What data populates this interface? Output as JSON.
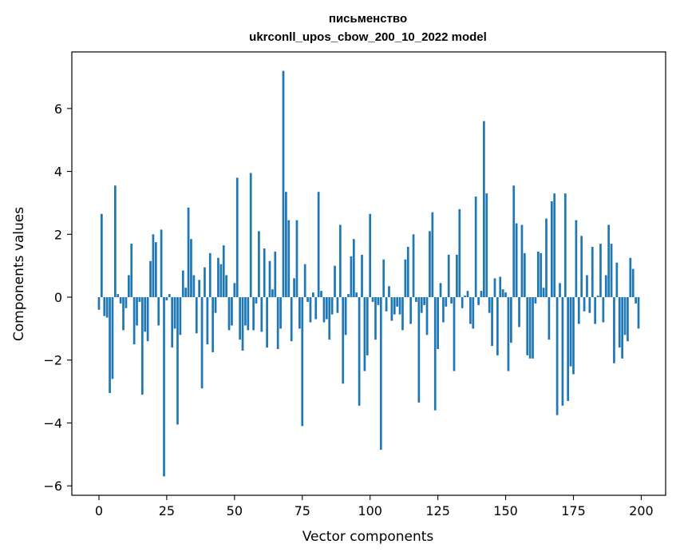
{
  "chart_data": {
    "type": "bar",
    "title": "письменство",
    "subtitle": "ukrconll_upos_cbow_200_10_2022 model",
    "xlabel": "Vector components",
    "ylabel": "Components values",
    "xlim": [
      -10,
      209
    ],
    "ylim": [
      -6.3,
      7.8
    ],
    "xticks": [
      0,
      25,
      50,
      75,
      100,
      125,
      150,
      175,
      200
    ],
    "yticks": [
      -6,
      -4,
      -2,
      0,
      2,
      4,
      6
    ],
    "ytick_labels": [
      "−6",
      "−4",
      "−2",
      "0",
      "2",
      "4",
      "6"
    ],
    "grid": false,
    "bar_color": "#1f77b4",
    "categories": [
      0,
      1,
      2,
      3,
      4,
      5,
      6,
      7,
      8,
      9,
      10,
      11,
      12,
      13,
      14,
      15,
      16,
      17,
      18,
      19,
      20,
      21,
      22,
      23,
      24,
      25,
      26,
      27,
      28,
      29,
      30,
      31,
      32,
      33,
      34,
      35,
      36,
      37,
      38,
      39,
      40,
      41,
      42,
      43,
      44,
      45,
      46,
      47,
      48,
      49,
      50,
      51,
      52,
      53,
      54,
      55,
      56,
      57,
      58,
      59,
      60,
      61,
      62,
      63,
      64,
      65,
      66,
      67,
      68,
      69,
      70,
      71,
      72,
      73,
      74,
      75,
      76,
      77,
      78,
      79,
      80,
      81,
      82,
      83,
      84,
      85,
      86,
      87,
      88,
      89,
      90,
      91,
      92,
      93,
      94,
      95,
      96,
      97,
      98,
      99,
      100,
      101,
      102,
      103,
      104,
      105,
      106,
      107,
      108,
      109,
      110,
      111,
      112,
      113,
      114,
      115,
      116,
      117,
      118,
      119,
      120,
      121,
      122,
      123,
      124,
      125,
      126,
      127,
      128,
      129,
      130,
      131,
      132,
      133,
      134,
      135,
      136,
      137,
      138,
      139,
      140,
      141,
      142,
      143,
      144,
      145,
      146,
      147,
      148,
      149,
      150,
      151,
      152,
      153,
      154,
      155,
      156,
      157,
      158,
      159,
      160,
      161,
      162,
      163,
      164,
      165,
      166,
      167,
      168,
      169,
      170,
      171,
      172,
      173,
      174,
      175,
      176,
      177,
      178,
      179,
      180,
      181,
      182,
      183,
      184,
      185,
      186,
      187,
      188,
      189,
      190,
      191,
      192,
      193,
      194,
      195,
      196,
      197,
      198,
      199
    ],
    "values": [
      -0.4,
      2.65,
      -0.6,
      -0.65,
      -3.05,
      -2.6,
      3.55,
      0.1,
      -0.2,
      -1.05,
      -0.35,
      0.7,
      1.7,
      -1.5,
      -0.9,
      -0.15,
      -3.1,
      -1.1,
      -1.4,
      1.15,
      2.0,
      1.75,
      -0.9,
      2.15,
      -5.7,
      -0.1,
      0.1,
      -1.6,
      -1.0,
      -4.05,
      -1.2,
      0.85,
      0.3,
      2.85,
      1.85,
      0.7,
      -1.15,
      0.55,
      -2.9,
      0.95,
      -1.5,
      1.4,
      -1.75,
      -0.5,
      1.25,
      1.05,
      1.65,
      0.7,
      -1.05,
      -0.9,
      0.45,
      3.8,
      -1.35,
      -1.7,
      -0.9,
      -1.05,
      3.95,
      -1.05,
      -0.2,
      2.1,
      -1.1,
      1.55,
      -1.6,
      1.15,
      0.25,
      1.45,
      -1.65,
      -1.0,
      7.2,
      3.35,
      2.45,
      -1.4,
      0.6,
      2.45,
      -1.0,
      -4.1,
      1.05,
      -0.15,
      -0.8,
      0.15,
      -0.7,
      3.35,
      0.2,
      -0.8,
      -0.7,
      -1.35,
      -0.55,
      1.0,
      -0.5,
      2.3,
      -2.75,
      -1.2,
      0.1,
      1.3,
      1.85,
      0.15,
      -3.45,
      1.35,
      -2.35,
      -1.85,
      2.65,
      -0.15,
      -1.35,
      -0.25,
      -4.85,
      1.2,
      -0.45,
      0.35,
      -0.75,
      -0.55,
      -0.3,
      -0.55,
      -1.05,
      1.2,
      1.6,
      -0.85,
      2.0,
      -0.15,
      -3.35,
      -0.5,
      -0.25,
      -1.2,
      2.1,
      2.7,
      -3.6,
      -1.65,
      0.45,
      -0.8,
      -0.3,
      1.35,
      -0.2,
      -2.35,
      1.35,
      2.8,
      -0.35,
      0.05,
      0.2,
      -0.85,
      -1.0,
      3.2,
      -0.25,
      0.2,
      5.6,
      3.3,
      -0.5,
      -1.55,
      0.6,
      -1.85,
      0.65,
      0.25,
      0.15,
      -2.35,
      -1.45,
      3.55,
      2.35,
      -0.95,
      2.3,
      1.4,
      -1.85,
      -1.95,
      -1.95,
      -0.2,
      1.45,
      1.4,
      0.3,
      2.5,
      -1.35,
      3.05,
      3.3,
      -3.75,
      0.45,
      -3.45,
      3.3,
      -3.3,
      -2.2,
      -2.45,
      2.45,
      -0.85,
      1.95,
      -0.45,
      0.7,
      -0.5,
      1.6,
      -0.85,
      0.05,
      1.7,
      -0.8,
      0.7,
      2.3,
      1.7,
      -2.1,
      1.1,
      -1.6,
      -1.95,
      -1.2,
      -1.4,
      1.25,
      0.9,
      -0.2,
      -1.0
    ]
  }
}
